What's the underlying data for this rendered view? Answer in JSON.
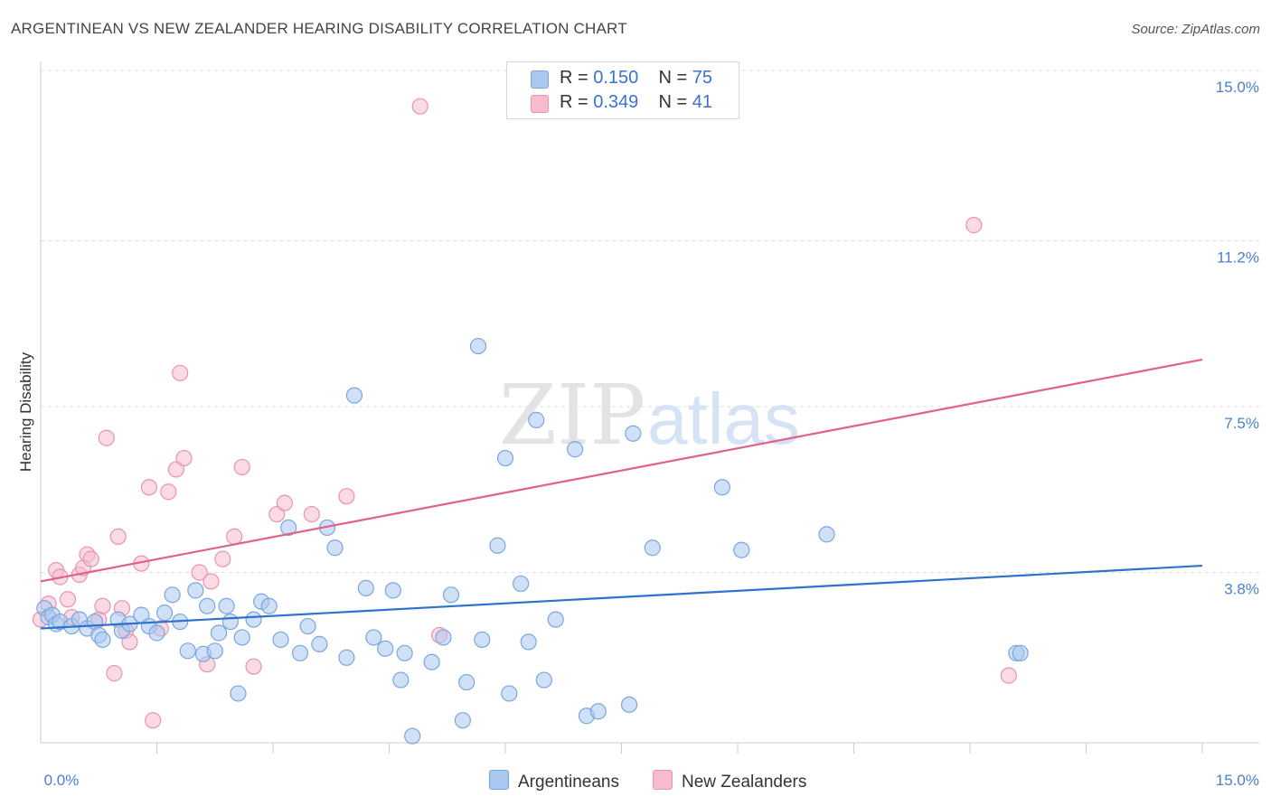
{
  "title": "ARGENTINEAN VS NEW ZEALANDER HEARING DISABILITY CORRELATION CHART",
  "source": "Source: ZipAtlas.com",
  "watermark": {
    "zip": "ZIP",
    "atlas": "atlas"
  },
  "legend": [
    {
      "r_label": "R =",
      "r_value": "0.150",
      "n_label": "N =",
      "n_value": "75"
    },
    {
      "r_label": "R =",
      "r_value": "0.349",
      "n_label": "N =",
      "n_value": "41"
    }
  ],
  "bottom_legend": [
    "Argentineans",
    "New Zealanders"
  ],
  "colors": {
    "blue_fill": "#a9c8f0",
    "blue_stroke": "#7aa6e0",
    "blue_line": "#2f72cc",
    "pink_fill": "#f6bccd",
    "pink_stroke": "#ea93ae",
    "pink_line": "#e0628a",
    "grid": "#dddddd",
    "axis_text": "#4a7fd0"
  },
  "chart_data": {
    "type": "scatter",
    "title": "ARGENTINEAN VS NEW ZEALANDER HEARING DISABILITY CORRELATION CHART",
    "ylabel": "Hearing Disability",
    "xlabel": "",
    "xlim": [
      0,
      15
    ],
    "ylim": [
      0,
      15
    ],
    "y_ticks": [
      {
        "value": 3.8,
        "label": "3.8%"
      },
      {
        "value": 7.5,
        "label": "7.5%"
      },
      {
        "value": 11.2,
        "label": "11.2%"
      },
      {
        "value": 15.0,
        "label": "15.0%"
      }
    ],
    "x_tick_labels": [
      {
        "value": 0,
        "label": "0.0%"
      },
      {
        "value": 15,
        "label": "15.0%"
      }
    ],
    "x_minor_ticks": [
      1.5,
      3.0,
      4.5,
      6.0,
      7.5,
      9.0,
      10.5,
      12.0,
      13.5,
      15.0
    ],
    "series": [
      {
        "name": "Argentineans",
        "r": 0.15,
        "n": 75,
        "trend": {
          "x": [
            0,
            15
          ],
          "y": [
            2.55,
            3.95
          ]
        },
        "points": [
          [
            0.05,
            3.0
          ],
          [
            0.1,
            2.8
          ],
          [
            0.15,
            2.85
          ],
          [
            0.2,
            2.65
          ],
          [
            0.25,
            2.7
          ],
          [
            0.4,
            2.6
          ],
          [
            0.5,
            2.75
          ],
          [
            0.6,
            2.55
          ],
          [
            0.7,
            2.7
          ],
          [
            0.75,
            2.4
          ],
          [
            0.8,
            2.3
          ],
          [
            1.0,
            2.75
          ],
          [
            1.05,
            2.5
          ],
          [
            1.15,
            2.65
          ],
          [
            1.3,
            2.85
          ],
          [
            1.4,
            2.6
          ],
          [
            1.5,
            2.45
          ],
          [
            1.6,
            2.9
          ],
          [
            1.7,
            3.3
          ],
          [
            1.8,
            2.7
          ],
          [
            1.9,
            2.05
          ],
          [
            2.0,
            3.4
          ],
          [
            2.1,
            1.98
          ],
          [
            2.15,
            3.05
          ],
          [
            2.25,
            2.05
          ],
          [
            2.3,
            2.45
          ],
          [
            2.4,
            3.05
          ],
          [
            2.45,
            2.7
          ],
          [
            2.55,
            1.1
          ],
          [
            2.6,
            2.35
          ],
          [
            2.75,
            2.75
          ],
          [
            2.85,
            3.15
          ],
          [
            2.95,
            3.05
          ],
          [
            3.1,
            2.3
          ],
          [
            3.2,
            4.8
          ],
          [
            3.35,
            2.0
          ],
          [
            3.45,
            2.6
          ],
          [
            3.6,
            2.2
          ],
          [
            3.7,
            4.8
          ],
          [
            3.8,
            4.35
          ],
          [
            3.95,
            1.9
          ],
          [
            4.05,
            7.75
          ],
          [
            4.2,
            3.45
          ],
          [
            4.3,
            2.35
          ],
          [
            4.45,
            2.1
          ],
          [
            4.55,
            3.4
          ],
          [
            4.65,
            1.4
          ],
          [
            4.7,
            2.0
          ],
          [
            4.8,
            0.15
          ],
          [
            5.05,
            1.8
          ],
          [
            5.2,
            2.35
          ],
          [
            5.3,
            3.3
          ],
          [
            5.45,
            0.5
          ],
          [
            5.5,
            1.35
          ],
          [
            5.65,
            8.85
          ],
          [
            5.7,
            2.3
          ],
          [
            5.9,
            4.4
          ],
          [
            6.0,
            6.35
          ],
          [
            6.05,
            1.1
          ],
          [
            6.2,
            3.55
          ],
          [
            6.3,
            2.25
          ],
          [
            6.4,
            7.2
          ],
          [
            6.5,
            1.4
          ],
          [
            6.65,
            2.75
          ],
          [
            6.9,
            6.55
          ],
          [
            7.05,
            0.6
          ],
          [
            7.2,
            0.7
          ],
          [
            7.6,
            0.85
          ],
          [
            7.65,
            6.9
          ],
          [
            7.9,
            4.35
          ],
          [
            8.8,
            5.7
          ],
          [
            9.05,
            4.3
          ],
          [
            10.15,
            4.65
          ],
          [
            12.6,
            2.0
          ],
          [
            12.65,
            2.0
          ]
        ]
      },
      {
        "name": "New Zealanders",
        "r": 0.349,
        "n": 41,
        "trend": {
          "x": [
            0,
            15
          ],
          "y": [
            3.6,
            8.55
          ]
        },
        "points": [
          [
            0.0,
            2.75
          ],
          [
            0.1,
            3.1
          ],
          [
            0.2,
            3.85
          ],
          [
            0.25,
            3.7
          ],
          [
            0.35,
            3.2
          ],
          [
            0.4,
            2.8
          ],
          [
            0.5,
            3.75
          ],
          [
            0.55,
            3.9
          ],
          [
            0.6,
            4.2
          ],
          [
            0.65,
            4.1
          ],
          [
            0.75,
            2.75
          ],
          [
            0.8,
            3.05
          ],
          [
            0.85,
            6.8
          ],
          [
            0.95,
            1.55
          ],
          [
            1.0,
            4.6
          ],
          [
            1.05,
            3.0
          ],
          [
            1.1,
            2.5
          ],
          [
            1.15,
            2.25
          ],
          [
            1.3,
            4.0
          ],
          [
            1.4,
            5.7
          ],
          [
            1.45,
            0.5
          ],
          [
            1.55,
            2.55
          ],
          [
            1.65,
            5.6
          ],
          [
            1.75,
            6.1
          ],
          [
            1.8,
            8.25
          ],
          [
            1.85,
            6.35
          ],
          [
            2.05,
            3.8
          ],
          [
            2.15,
            1.75
          ],
          [
            2.2,
            3.6
          ],
          [
            2.35,
            4.1
          ],
          [
            2.5,
            4.6
          ],
          [
            2.6,
            6.15
          ],
          [
            2.75,
            1.7
          ],
          [
            3.05,
            5.1
          ],
          [
            3.15,
            5.35
          ],
          [
            3.5,
            5.1
          ],
          [
            3.95,
            5.5
          ],
          [
            4.9,
            14.2
          ],
          [
            5.15,
            2.4
          ],
          [
            12.05,
            11.55
          ],
          [
            12.5,
            1.5
          ]
        ]
      }
    ]
  }
}
